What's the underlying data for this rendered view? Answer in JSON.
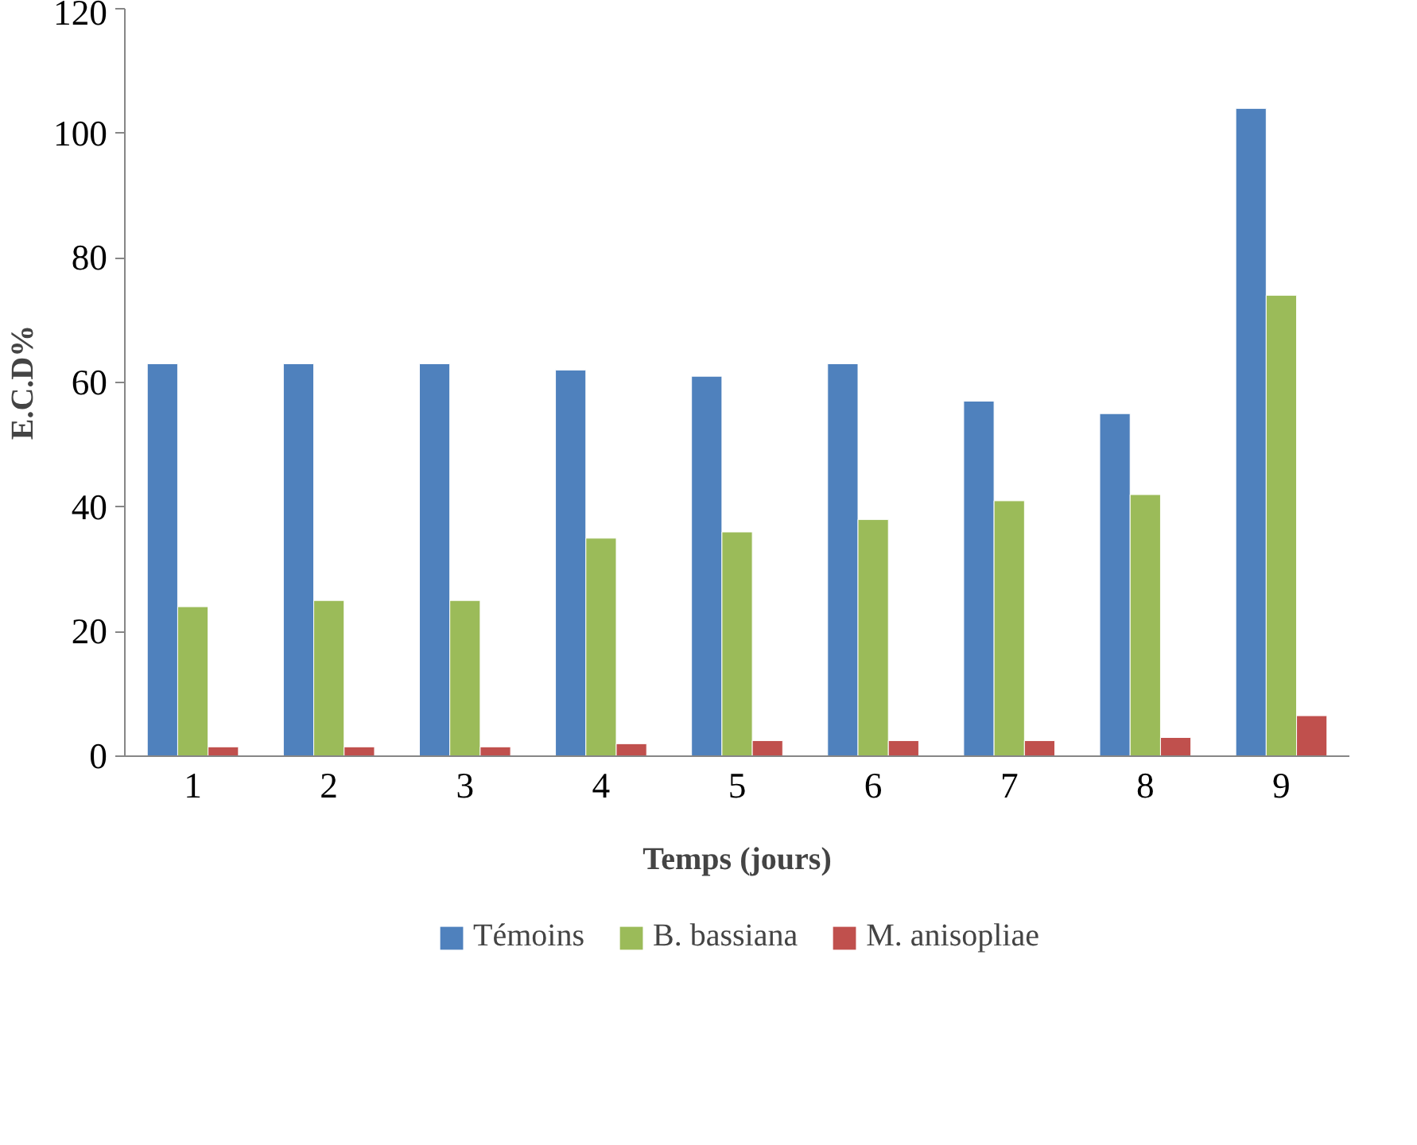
{
  "chart_data": {
    "type": "bar",
    "xlabel": "Temps (jours)",
    "ylabel": "E.C.D%",
    "categories": [
      "1",
      "2",
      "3",
      "4",
      "5",
      "6",
      "7",
      "8",
      "9"
    ],
    "series": [
      {
        "name": "Témoins",
        "color": "#4f81bd",
        "values": [
          63,
          63,
          63,
          62,
          61,
          63,
          57,
          55,
          104
        ]
      },
      {
        "name": "B. bassiana",
        "color": "#9bbb59",
        "values": [
          24,
          25,
          25,
          35,
          36,
          38,
          41,
          42,
          74
        ]
      },
      {
        "name": "M. anisopliae",
        "color": "#c0504d",
        "values": [
          1.5,
          1.5,
          1.5,
          2,
          2.5,
          2.5,
          2.5,
          3,
          6.5
        ]
      }
    ],
    "ylim": [
      0,
      120
    ],
    "yticks": [
      0,
      20,
      40,
      60,
      80,
      100,
      120
    ],
    "grid": false,
    "legend": "bottom"
  }
}
